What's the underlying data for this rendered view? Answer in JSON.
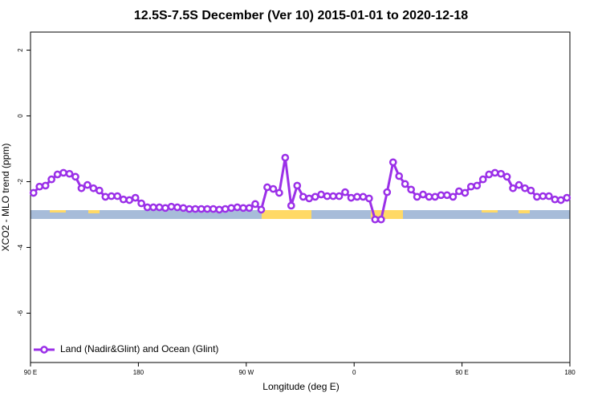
{
  "chart_data": {
    "type": "line",
    "title": "12.5S-7.5S December (Ver 10)   2015-01-01 to 2020-12-18",
    "xlabel": "Longitude (deg E)",
    "ylabel": "XCO2 - MLO trend (ppm)",
    "xlim": [
      90,
      540
    ],
    "ylim": [
      -7.5,
      2.55
    ],
    "xticks": [
      {
        "value": 90,
        "label": "90 E"
      },
      180,
      {
        "value": 270,
        "label": "90 W"
      },
      {
        "value": 360,
        "label": "0"
      },
      {
        "value": 450,
        "label": "90 E"
      },
      {
        "value": 540,
        "label": "180"
      }
    ],
    "yticks": [
      -6,
      -4,
      -2,
      0,
      2
    ],
    "legend": "bottom-left",
    "x": [
      92.5,
      97.5,
      102.5,
      107.5,
      112.5,
      117.5,
      122.5,
      127.5,
      132.5,
      137.5,
      142.5,
      147.5,
      152.5,
      157.5,
      162.5,
      167.5,
      172.5,
      177.5,
      182.5,
      187.5,
      192.5,
      197.5,
      202.5,
      207.5,
      212.5,
      217.5,
      222.5,
      227.5,
      232.5,
      237.5,
      242.5,
      247.5,
      252.5,
      257.5,
      262.5,
      267.5,
      272.5,
      277.5,
      282.5,
      287.5,
      292.5,
      297.5,
      302.5,
      307.5,
      312.5,
      317.5,
      322.5,
      327.5,
      332.5,
      337.5,
      342.5,
      347.5,
      352.5,
      357.5,
      362.5,
      367.5,
      372.5,
      377.5,
      382.5,
      387.5,
      392.5,
      397.5,
      402.5,
      407.5,
      412.5,
      417.5,
      422.5,
      427.5,
      432.5,
      437.5,
      442.5,
      447.5,
      452.5,
      457.5,
      462.5,
      467.5,
      472.5,
      477.5,
      482.5,
      487.5,
      492.5,
      497.5,
      502.5,
      507.5,
      512.5,
      517.5,
      522.5,
      527.5,
      532.5,
      537.5
    ],
    "series": [
      {
        "name": "Land (Nadir&Glint) and Ocean (Glint)",
        "color": "#9b30e8",
        "values": [
          -2.34,
          -2.15,
          -2.12,
          -1.93,
          -1.78,
          -1.73,
          -1.76,
          -1.85,
          -2.2,
          -2.1,
          -2.2,
          -2.27,
          -2.46,
          -2.44,
          -2.44,
          -2.54,
          -2.56,
          -2.49,
          -2.66,
          -2.78,
          -2.78,
          -2.78,
          -2.8,
          -2.76,
          -2.78,
          -2.8,
          -2.83,
          -2.83,
          -2.83,
          -2.83,
          -2.83,
          -2.85,
          -2.83,
          -2.8,
          -2.78,
          -2.8,
          -2.8,
          -2.68,
          -2.85,
          -2.17,
          -2.22,
          -2.34,
          -1.27,
          -2.73,
          -2.12,
          -2.46,
          -2.51,
          -2.46,
          -2.39,
          -2.44,
          -2.44,
          -2.44,
          -2.32,
          -2.49,
          -2.46,
          -2.46,
          -2.51,
          -3.15,
          -3.15,
          -2.32,
          -1.41,
          -1.83,
          -2.07,
          -2.24,
          -2.46,
          -2.39,
          -2.46,
          -2.46,
          -2.41,
          -2.41,
          -2.46,
          -2.29,
          -2.34,
          -2.15,
          -2.12,
          -1.93,
          -1.78,
          -1.73,
          -1.76,
          -1.85,
          -2.2,
          -2.1,
          -2.2,
          -2.27,
          -2.46,
          -2.44,
          -2.44,
          -2.54,
          -2.56,
          -2.49
        ]
      }
    ]
  }
}
